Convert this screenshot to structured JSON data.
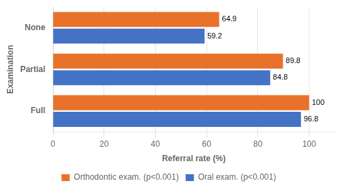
{
  "chart_data": {
    "type": "bar",
    "orientation": "horizontal",
    "categories": [
      "None",
      "Partial",
      "Full"
    ],
    "series": [
      {
        "name": "Orthodontic exam. (p<0.001)",
        "color": "#E8722A",
        "values": [
          64.9,
          89.8,
          100.0
        ]
      },
      {
        "name": "Oral exam. (p<0.001)",
        "color": "#4472C4",
        "values": [
          59.2,
          84.8,
          96.8
        ]
      }
    ],
    "xlabel": "Referral rate (%)",
    "ylabel": "Examination",
    "xlim": [
      0,
      110
    ],
    "xticks": [
      0,
      20,
      40,
      60,
      80,
      100
    ],
    "grid": true,
    "legend": "bottom",
    "data_labels": true
  }
}
